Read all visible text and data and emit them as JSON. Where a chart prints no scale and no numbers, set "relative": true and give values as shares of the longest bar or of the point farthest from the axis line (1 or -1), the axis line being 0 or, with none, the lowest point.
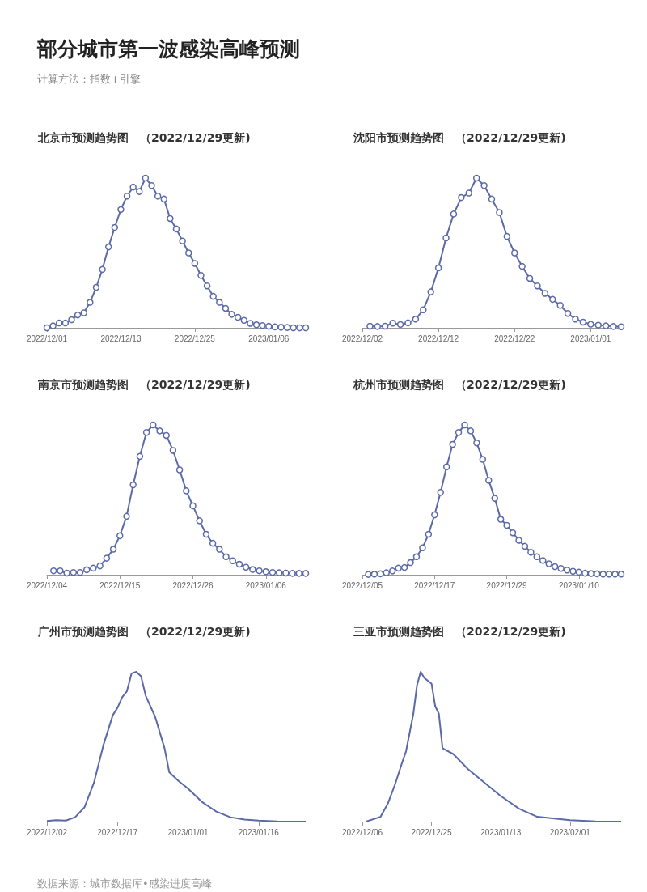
{
  "chart_data": [
    {
      "type": "other",
      "title": "部分城市第一波感染高峰预测",
      "subtitle": "计算方法：指数+引擎"
    },
    {
      "type": "line",
      "title": "北京市预测趋势图　（2022/12/29更新)",
      "relative": true,
      "marker": "circle",
      "color": "#5b69a8",
      "x": [
        "2022-12-01",
        "2022-12-02",
        "2022-12-03",
        "2022-12-04",
        "2022-12-05",
        "2022-12-06",
        "2022-12-07",
        "2022-12-08",
        "2022-12-09",
        "2022-12-10",
        "2022-12-11",
        "2022-12-12",
        "2022-12-13",
        "2022-12-14",
        "2022-12-15",
        "2022-12-16",
        "2022-12-17",
        "2022-12-18",
        "2022-12-19",
        "2022-12-20",
        "2022-12-21",
        "2022-12-22",
        "2022-12-23",
        "2022-12-24",
        "2022-12-25",
        "2022-12-26",
        "2022-12-27",
        "2022-12-28",
        "2022-12-29",
        "2022-12-30",
        "2022-12-31",
        "2023-01-01",
        "2023-01-02",
        "2023-01-03",
        "2023-01-04",
        "2023-01-05",
        "2023-01-06",
        "2023-01-07",
        "2023-01-08",
        "2023-01-09",
        "2023-01-10",
        "2023-01-11",
        "2023-01-12"
      ],
      "values": [
        0,
        0.013,
        0.032,
        0.032,
        0.054,
        0.086,
        0.1,
        0.17,
        0.27,
        0.39,
        0.54,
        0.67,
        0.79,
        0.88,
        0.94,
        0.91,
        1,
        0.95,
        0.88,
        0.86,
        0.73,
        0.66,
        0.58,
        0.5,
        0.43,
        0.35,
        0.28,
        0.21,
        0.17,
        0.13,
        0.09,
        0.07,
        0.05,
        0.03,
        0.02,
        0.015,
        0.01,
        0.006,
        0.004,
        0.002,
        0,
        0,
        0
      ],
      "xlim": [
        "2022-12-01",
        "2023-01-12"
      ],
      "xticks": [
        {
          "value": "2022-12-01",
          "label": "2022/12/01"
        },
        {
          "value": "2022-12-13",
          "label": "2022/12/13"
        },
        {
          "value": "2022-12-25",
          "label": "2022/12/25"
        },
        {
          "value": "2023-01-06",
          "label": "2023/01/06"
        }
      ]
    },
    {
      "type": "line",
      "title": "沈阳市预测趋势图　（2022/12/29更新)",
      "relative": true,
      "marker": "circle",
      "color": "#5b69a8",
      "x": [
        "2022-12-03",
        "2022-12-04",
        "2022-12-05",
        "2022-12-06",
        "2022-12-07",
        "2022-12-08",
        "2022-12-09",
        "2022-12-10",
        "2022-12-11",
        "2022-12-12",
        "2022-12-13",
        "2022-12-14",
        "2022-12-15",
        "2022-12-16",
        "2022-12-17",
        "2022-12-18",
        "2022-12-19",
        "2022-12-20",
        "2022-12-21",
        "2022-12-22",
        "2022-12-23",
        "2022-12-24",
        "2022-12-25",
        "2022-12-26",
        "2022-12-27",
        "2022-12-28",
        "2022-12-29",
        "2022-12-30",
        "2022-12-31",
        "2023-01-01",
        "2023-01-02",
        "2023-01-03",
        "2023-01-04",
        "2023-01-05"
      ],
      "values": [
        0.011,
        0.009,
        0.011,
        0.031,
        0.022,
        0.033,
        0.058,
        0.12,
        0.24,
        0.4,
        0.6,
        0.76,
        0.87,
        0.9,
        1,
        0.95,
        0.86,
        0.77,
        0.61,
        0.5,
        0.41,
        0.33,
        0.28,
        0.23,
        0.19,
        0.15,
        0.096,
        0.058,
        0.038,
        0.024,
        0.018,
        0.013,
        0.009,
        0.007
      ],
      "xlim": [
        "2022-12-02",
        "2023-01-05"
      ],
      "xticks": [
        {
          "value": "2022-12-02",
          "label": "2022/12/02"
        },
        {
          "value": "2022-12-12",
          "label": "2022/12/12"
        },
        {
          "value": "2022-12-22",
          "label": "2022/12/22"
        },
        {
          "value": "2023-01-01",
          "label": "2023/01/01"
        }
      ]
    },
    {
      "type": "line",
      "title": "南京市预测趋势图　（2022/12/29更新)",
      "relative": true,
      "marker": "circle",
      "color": "#5b69a8",
      "x": [
        "2022-12-05",
        "2022-12-06",
        "2022-12-07",
        "2022-12-08",
        "2022-12-09",
        "2022-12-10",
        "2022-12-11",
        "2022-12-12",
        "2022-12-13",
        "2022-12-14",
        "2022-12-15",
        "2022-12-16",
        "2022-12-17",
        "2022-12-18",
        "2022-12-19",
        "2022-12-20",
        "2022-12-21",
        "2022-12-22",
        "2022-12-23",
        "2022-12-24",
        "2022-12-25",
        "2022-12-26",
        "2022-12-27",
        "2022-12-28",
        "2022-12-29",
        "2022-12-30",
        "2022-12-31",
        "2023-01-01",
        "2023-01-02",
        "2023-01-03",
        "2023-01-04",
        "2023-01-05",
        "2023-01-06",
        "2023-01-07",
        "2023-01-08",
        "2023-01-09",
        "2023-01-10",
        "2023-01-11",
        "2023-01-12"
      ],
      "values": [
        0.026,
        0.026,
        0.011,
        0.015,
        0.015,
        0.033,
        0.044,
        0.059,
        0.11,
        0.17,
        0.26,
        0.39,
        0.6,
        0.79,
        0.95,
        1,
        0.96,
        0.93,
        0.83,
        0.7,
        0.56,
        0.46,
        0.36,
        0.27,
        0.21,
        0.17,
        0.12,
        0.093,
        0.07,
        0.05,
        0.035,
        0.026,
        0.02,
        0.015,
        0.013,
        0.011,
        0.009,
        0.009,
        0.009
      ],
      "xlim": [
        "2022-12-04",
        "2023-01-12"
      ],
      "xticks": [
        {
          "value": "2022-12-04",
          "label": "2022/12/04"
        },
        {
          "value": "2022-12-15",
          "label": "2022/12/15"
        },
        {
          "value": "2022-12-26",
          "label": "2022/12/26"
        },
        {
          "value": "2023-01-06",
          "label": "2023/01/06"
        }
      ]
    },
    {
      "type": "line",
      "title": "杭州市预测趋势图　（2022/12/29更新)",
      "relative": true,
      "marker": "circle",
      "color": "#5b69a8",
      "x": [
        "2022-12-06",
        "2022-12-07",
        "2022-12-08",
        "2022-12-09",
        "2022-12-10",
        "2022-12-11",
        "2022-12-12",
        "2022-12-13",
        "2022-12-14",
        "2022-12-15",
        "2022-12-16",
        "2022-12-17",
        "2022-12-18",
        "2022-12-19",
        "2022-12-20",
        "2022-12-21",
        "2022-12-22",
        "2022-12-23",
        "2022-12-24",
        "2022-12-25",
        "2022-12-26",
        "2022-12-27",
        "2022-12-28",
        "2022-12-29",
        "2022-12-30",
        "2022-12-31",
        "2023-01-01",
        "2023-01-02",
        "2023-01-03",
        "2023-01-04",
        "2023-01-05",
        "2023-01-06",
        "2023-01-07",
        "2023-01-08",
        "2023-01-09",
        "2023-01-10",
        "2023-01-11",
        "2023-01-12",
        "2023-01-13",
        "2023-01-14",
        "2023-01-15",
        "2023-01-16",
        "2023-01-17"
      ],
      "values": [
        0.002,
        0.004,
        0.006,
        0.013,
        0.025,
        0.044,
        0.048,
        0.081,
        0.12,
        0.18,
        0.27,
        0.4,
        0.55,
        0.72,
        0.87,
        0.95,
        1,
        0.96,
        0.88,
        0.77,
        0.63,
        0.51,
        0.37,
        0.33,
        0.28,
        0.23,
        0.19,
        0.15,
        0.12,
        0.095,
        0.073,
        0.054,
        0.042,
        0.031,
        0.023,
        0.017,
        0.01,
        0.008,
        0.006,
        0.004,
        0.004,
        0.004,
        0.004
      ],
      "xlim": [
        "2022-12-05",
        "2023-01-17"
      ],
      "xticks": [
        {
          "value": "2022-12-05",
          "label": "2022/12/05"
        },
        {
          "value": "2022-12-17",
          "label": "2022/12/17"
        },
        {
          "value": "2022-12-29",
          "label": "2022/12/29"
        },
        {
          "value": "2023-01-10",
          "label": "2023/01/10"
        }
      ]
    },
    {
      "type": "line",
      "title": "广州市预测趋势图　（2022/12/29更新)",
      "relative": true,
      "marker": "none",
      "color": "#5b69a8",
      "x": [
        "2022-12-02",
        "2022-12-04",
        "2022-12-06",
        "2022-12-08",
        "2022-12-10",
        "2022-12-12",
        "2022-12-14",
        "2022-12-16",
        "2022-12-17",
        "2022-12-18",
        "2022-12-19",
        "2022-12-20",
        "2022-12-21",
        "2022-12-22",
        "2022-12-23",
        "2022-12-25",
        "2022-12-27",
        "2022-12-28",
        "2022-12-30",
        "2023-01-01",
        "2023-01-04",
        "2023-01-07",
        "2023-01-10",
        "2023-01-13",
        "2023-01-16",
        "2023-01-20",
        "2023-01-26"
      ],
      "values": [
        0.004,
        0.009,
        0.007,
        0.029,
        0.096,
        0.26,
        0.51,
        0.71,
        0.76,
        0.83,
        0.87,
        0.99,
        1,
        0.97,
        0.84,
        0.7,
        0.49,
        0.33,
        0.27,
        0.22,
        0.13,
        0.067,
        0.029,
        0.013,
        0.007,
        0.002,
        0
      ],
      "xlim": [
        "2022-12-02",
        "2023-01-26"
      ],
      "xticks": [
        {
          "value": "2022-12-02",
          "label": "2022/12/02"
        },
        {
          "value": "2022-12-17",
          "label": "2022/12/17"
        },
        {
          "value": "2023-01-01",
          "label": "2023/01/01"
        },
        {
          "value": "2023-01-16",
          "label": "2023/01/16"
        }
      ]
    },
    {
      "type": "line",
      "title": "三亚市预测趋势图　（2022/12/29更新)",
      "relative": true,
      "marker": "none",
      "color": "#5b69a8",
      "x": [
        "2022-12-07",
        "2022-12-11",
        "2022-12-13",
        "2022-12-15",
        "2022-12-17",
        "2022-12-18",
        "2022-12-20",
        "2022-12-21",
        "2022-12-22",
        "2022-12-23",
        "2022-12-25",
        "2022-12-26",
        "2022-12-27",
        "2022-12-28",
        "2022-12-31",
        "2023-01-04",
        "2023-01-09",
        "2023-01-13",
        "2023-01-18",
        "2023-01-23",
        "2023-02-01",
        "2023-02-08",
        "2023-02-15"
      ],
      "values": [
        0,
        0.032,
        0.12,
        0.25,
        0.4,
        0.47,
        0.72,
        0.91,
        1,
        0.96,
        0.92,
        0.77,
        0.72,
        0.49,
        0.45,
        0.35,
        0.25,
        0.17,
        0.086,
        0.032,
        0.009,
        0.002,
        0
      ],
      "xlim": [
        "2022-12-06",
        "2023-02-15"
      ],
      "xticks": [
        {
          "value": "2022-12-06",
          "label": "2022/12/06"
        },
        {
          "value": "2022-12-25",
          "label": "2022/12/25"
        },
        {
          "value": "2023-01-13",
          "label": "2023/01/13"
        },
        {
          "value": "2023-02-01",
          "label": "2023/02/01"
        }
      ]
    },
    {
      "type": "other",
      "annotations": [
        "数据来源：城市数据库•感染进度高峰"
      ]
    }
  ]
}
